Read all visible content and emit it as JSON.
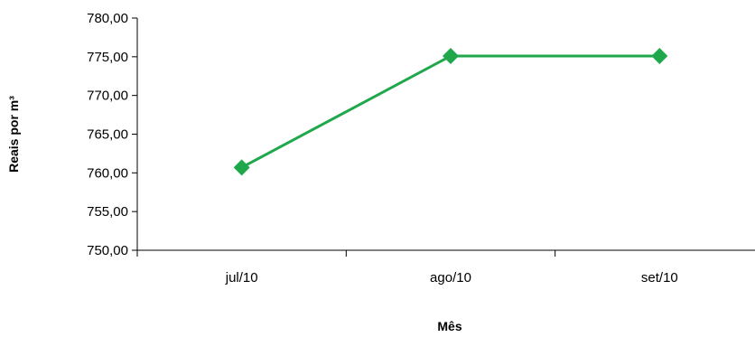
{
  "chart_data": {
    "type": "line",
    "title": "",
    "xlabel": "Mês",
    "ylabel": "Reais por m³",
    "categories": [
      "jul/10",
      "ago/10",
      "set/10"
    ],
    "series": [
      {
        "values": [
          760.7,
          775.1,
          775.1
        ],
        "color": "#1fa84b",
        "marker": "diamond"
      }
    ],
    "ylim": [
      750,
      780
    ],
    "ytick_step": 5,
    "ytick_labels": [
      "750,00",
      "755,00",
      "760,00",
      "765,00",
      "770,00",
      "775,00",
      "780,00"
    ],
    "grid": false,
    "legend": "none"
  }
}
